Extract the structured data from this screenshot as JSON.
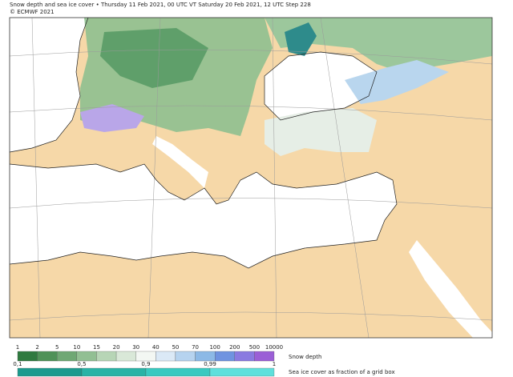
{
  "header": {
    "title": "Snow depth and sea ice cover • Thursday 11 Feb 2021, 00 UTC VT Saturday 20 Feb 2021, 12 UTC Step 228",
    "copyright": "© ECMWF 2021"
  },
  "legend": {
    "snow_depth": {
      "label": "Snow depth",
      "ticks": [
        1,
        2,
        5,
        10,
        15,
        20,
        30,
        40,
        50,
        70,
        100,
        200,
        500,
        10000
      ]
    },
    "sea_ice": {
      "label": "Sea ice cover as fraction of a grid box",
      "ticks": [
        "0,1",
        "0,5",
        "0,9",
        "0,99",
        "1"
      ]
    }
  }
}
